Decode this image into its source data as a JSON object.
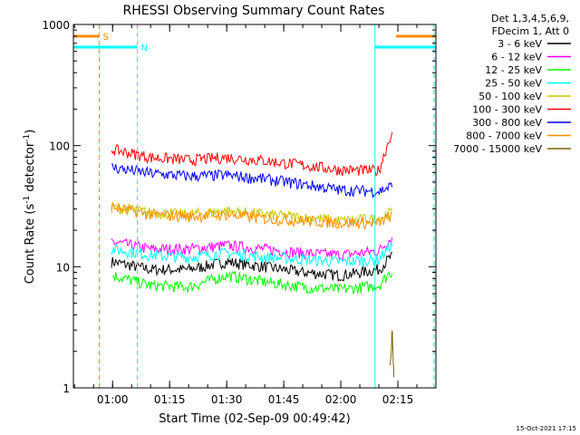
{
  "title": "RHESSI Observing Summary Count Rates",
  "timestamp": "15-Oct-2021 17:15",
  "chart_data": {
    "type": "line",
    "title": "RHESSI Observing Summary Count Rates",
    "xlabel": "Start Time (02-Sep-09 00:49:42)",
    "ylabel_main": "Count Rate (s",
    "ylabel_sup1": "-1",
    "ylabel_mid": " detector",
    "ylabel_sup2": "-1",
    "ylabel_end": ")",
    "yscale": "log",
    "ylim": [
      1,
      1000
    ],
    "xlim": [
      "00:49:42",
      "02:25:00"
    ],
    "y_ticks": [
      {
        "value": 1,
        "label": "1"
      },
      {
        "value": 10,
        "label": "10"
      },
      {
        "value": 100,
        "label": "100"
      },
      {
        "value": 1000,
        "label": "1000"
      }
    ],
    "x_ticks": [
      {
        "value": "01:00",
        "label": "01:00"
      },
      {
        "value": "01:15",
        "label": "01:15"
      },
      {
        "value": "01:30",
        "label": "01:30"
      },
      {
        "value": "01:45",
        "label": "01:45"
      },
      {
        "value": "02:00",
        "label": "02:00"
      },
      {
        "value": "02:15",
        "label": "02:15"
      }
    ],
    "legend_header": [
      "Det 1,3,4,5,6,9,",
      "FDecim 1, Att 0"
    ],
    "legend_placement": "right",
    "series": [
      {
        "name": "3 - 6 keV",
        "color": "#000000",
        "start": "00:59:42",
        "end": "02:13:30",
        "x": [
          "01:00",
          "01:10",
          "01:20",
          "01:30",
          "01:40",
          "01:50",
          "02:00",
          "02:10",
          "02:13"
        ],
        "values": [
          11,
          9.5,
          9.5,
          11,
          10,
          9,
          8.5,
          9.5,
          12
        ]
      },
      {
        "name": "6 - 12 keV",
        "color": "#ff00ff",
        "start": "00:59:42",
        "end": "02:13:30",
        "x": [
          "01:00",
          "01:10",
          "01:20",
          "01:30",
          "01:40",
          "01:50",
          "02:00",
          "02:10",
          "02:13"
        ],
        "values": [
          16,
          14,
          14,
          15,
          14,
          13,
          12.5,
          13.5,
          17
        ]
      },
      {
        "name": "12 - 25 keV",
        "color": "#00ff00",
        "start": "01:00:00",
        "end": "02:13:30",
        "x": [
          "01:00",
          "01:10",
          "01:20",
          "01:30",
          "01:40",
          "01:50",
          "02:00",
          "02:10",
          "02:13"
        ],
        "values": [
          8.5,
          7,
          6.8,
          8.5,
          7.5,
          6.8,
          6.5,
          7,
          9
        ]
      },
      {
        "name": "25 - 50 keV",
        "color": "#00ffff",
        "start": "00:59:42",
        "end": "02:13:30",
        "x": [
          "01:00",
          "01:10",
          "01:20",
          "01:30",
          "01:40",
          "01:50",
          "02:00",
          "02:10",
          "02:13"
        ],
        "values": [
          14,
          12.5,
          12,
          13,
          12,
          11.5,
          11,
          11.5,
          15
        ]
      },
      {
        "name": "50 - 100 keV",
        "color": "#c8c800",
        "start": "00:59:42",
        "end": "02:13:30",
        "x": [
          "01:00",
          "01:10",
          "01:20",
          "01:30",
          "01:40",
          "01:50",
          "02:00",
          "02:10",
          "02:13"
        ],
        "values": [
          31,
          28,
          27,
          29,
          27,
          25.5,
          24,
          25,
          28
        ]
      },
      {
        "name": "100 - 300 keV",
        "color": "#ff0000",
        "start": "00:59:42",
        "end": "02:13:30",
        "x": [
          "01:00",
          "01:10",
          "01:20",
          "01:30",
          "01:40",
          "01:50",
          "02:00",
          "02:10",
          "02:13"
        ],
        "values": [
          93,
          80,
          76,
          80,
          75,
          69,
          63,
          62,
          120
        ]
      },
      {
        "name": "300 - 800 keV",
        "color": "#0000ff",
        "start": "00:59:42",
        "end": "02:13:30",
        "x": [
          "01:00",
          "01:10",
          "01:20",
          "01:30",
          "01:40",
          "01:50",
          "02:00",
          "02:10",
          "02:13"
        ],
        "values": [
          66,
          59,
          56,
          57,
          53,
          48,
          43,
          42,
          46
        ]
      },
      {
        "name": "800 - 7000 keV",
        "color": "#ff8c00",
        "start": "00:59:42",
        "end": "02:13:30",
        "x": [
          "01:00",
          "01:10",
          "01:20",
          "01:30",
          "01:40",
          "01:50",
          "02:00",
          "02:10",
          "02:13"
        ],
        "values": [
          31,
          27,
          26,
          27,
          25,
          24,
          23,
          23,
          26
        ]
      },
      {
        "name": "7000 - 15000 keV",
        "color": "#806000",
        "start": "02:13:00",
        "end": "02:14:00",
        "x": [
          "02:13:00",
          "02:13:30",
          "02:14:00"
        ],
        "values": [
          1.5,
          2.8,
          1.2
        ]
      }
    ],
    "flags": [
      {
        "label": "S",
        "color": "#ff8c00",
        "line_style": "dashed",
        "y_level": 800,
        "segments": [
          [
            "00:49:42",
            "00:56:30"
          ],
          [
            "02:14:30",
            "02:25:00"
          ]
        ],
        "boundaries": [
          "00:56:30",
          "02:24:30"
        ]
      },
      {
        "label": "N",
        "color": "#00ffff",
        "line_style": "solid",
        "y_level": 650,
        "segments": [
          [
            "00:49:42",
            "01:06:30"
          ],
          [
            "02:09:00",
            "02:25:00"
          ]
        ],
        "boundaries": [
          "00:49:42",
          "02:09:00"
        ],
        "dashed_boundaries": [
          "01:06:30",
          "02:24:30"
        ]
      }
    ],
    "grid": false
  }
}
